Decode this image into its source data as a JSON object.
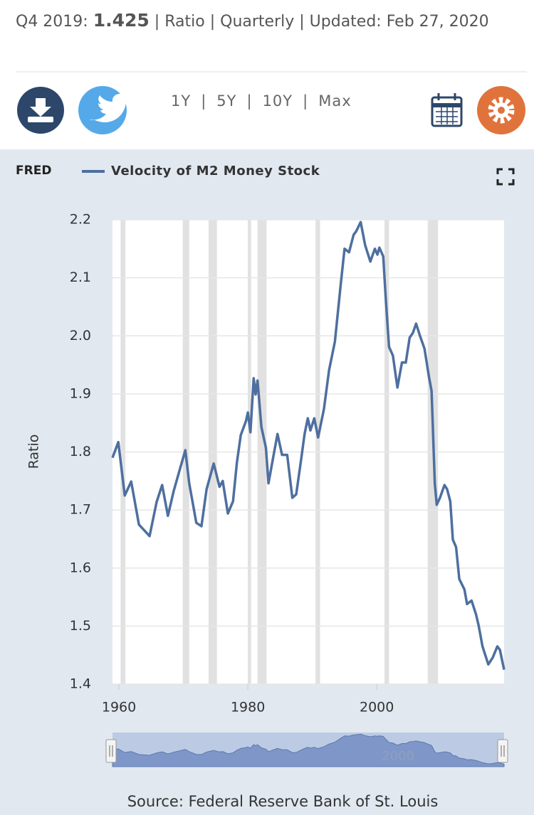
{
  "header": {
    "period": "Q4 2019:",
    "value": "1.425",
    "separator": "|",
    "units": "Ratio",
    "frequency": "Quarterly",
    "updated": "Updated: Feb 27, 2020"
  },
  "ranges": [
    "1Y",
    "5Y",
    "10Y",
    "Max"
  ],
  "chart_data": {
    "type": "line",
    "logo": "FRED",
    "y_label": "Ratio",
    "source": "Source: Federal Reserve Bank of St. Louis",
    "xlim": [
      1959,
      2019.75
    ],
    "xticks": [
      1960,
      1980,
      2000
    ],
    "ylim": [
      1.4,
      2.2
    ],
    "yticks": [
      1.4,
      1.5,
      1.6,
      1.7,
      1.8,
      1.9,
      {
        "value": 2,
        "label": "2.0"
      },
      2.1,
      2.2
    ],
    "grid": true,
    "shaded_periods": [
      [
        1960.25,
        1961.0
      ],
      [
        1969.9,
        1970.9
      ],
      [
        1973.9,
        1975.2
      ],
      [
        1980.0,
        1980.5
      ],
      [
        1981.5,
        1982.9
      ],
      [
        1990.5,
        1991.2
      ],
      [
        2001.2,
        2001.9
      ],
      [
        2007.9,
        2009.5
      ]
    ],
    "series": [
      {
        "name": "Velocity of M2 Money Stock",
        "color": "#4e6f9f",
        "x": [
          1959.0,
          1959.9,
          1960.9,
          1961.9,
          1963.1,
          1964.75,
          1965.85,
          1966.7,
          1967.6,
          1968.5,
          1969.6,
          1970.3,
          1970.9,
          1972.0,
          1972.8,
          1973.6,
          1974.7,
          1975.6,
          1976.1,
          1976.9,
          1977.7,
          1978.3,
          1978.9,
          1979.7,
          1980.0,
          1980.4,
          1980.9,
          1981.2,
          1981.5,
          1982.1,
          1982.8,
          1983.2,
          1984.0,
          1984.6,
          1985.3,
          1986.1,
          1986.9,
          1987.5,
          1988.2,
          1988.8,
          1989.3,
          1989.7,
          1990.3,
          1990.9,
          1991.8,
          1992.6,
          1993.5,
          1994.4,
          1995.0,
          1995.7,
          1996.4,
          1996.8,
          1997.5,
          1998.2,
          1999.0,
          1999.7,
          2000.1,
          2000.4,
          2001.0,
          2001.4,
          2001.9,
          2002.5,
          2003.2,
          2003.9,
          2004.5,
          2005.1,
          2005.6,
          2006.1,
          2006.7,
          2007.4,
          2008.1,
          2008.5,
          2009.0,
          2009.3,
          2009.8,
          2010.5,
          2010.9,
          2011.4,
          2011.8,
          2012.3,
          2012.8,
          2013.6,
          2014.0,
          2014.7,
          2015.4,
          2015.8,
          2016.4,
          2017.3,
          2018.0,
          2018.7,
          2019.1,
          2019.75
        ],
        "values": [
          1.79,
          1.817,
          1.725,
          1.749,
          1.675,
          1.655,
          1.714,
          1.743,
          1.69,
          1.733,
          1.776,
          1.803,
          1.746,
          1.678,
          1.672,
          1.736,
          1.78,
          1.74,
          1.75,
          1.694,
          1.715,
          1.782,
          1.829,
          1.853,
          1.868,
          1.834,
          1.927,
          1.899,
          1.923,
          1.843,
          1.807,
          1.746,
          1.795,
          1.831,
          1.795,
          1.795,
          1.721,
          1.727,
          1.782,
          1.831,
          1.858,
          1.837,
          1.858,
          1.825,
          1.874,
          1.941,
          1.99,
          2.088,
          2.15,
          2.144,
          2.174,
          2.18,
          2.196,
          2.156,
          2.128,
          2.15,
          2.14,
          2.152,
          2.137,
          2.063,
          1.981,
          1.966,
          1.911,
          1.954,
          1.954,
          1.997,
          2.005,
          2.021,
          2.0,
          1.978,
          1.929,
          1.905,
          1.746,
          1.709,
          1.721,
          1.743,
          1.736,
          1.715,
          1.649,
          1.636,
          1.581,
          1.563,
          1.538,
          1.544,
          1.52,
          1.501,
          1.465,
          1.434,
          1.446,
          1.465,
          1.459,
          1.425
        ]
      }
    ]
  }
}
